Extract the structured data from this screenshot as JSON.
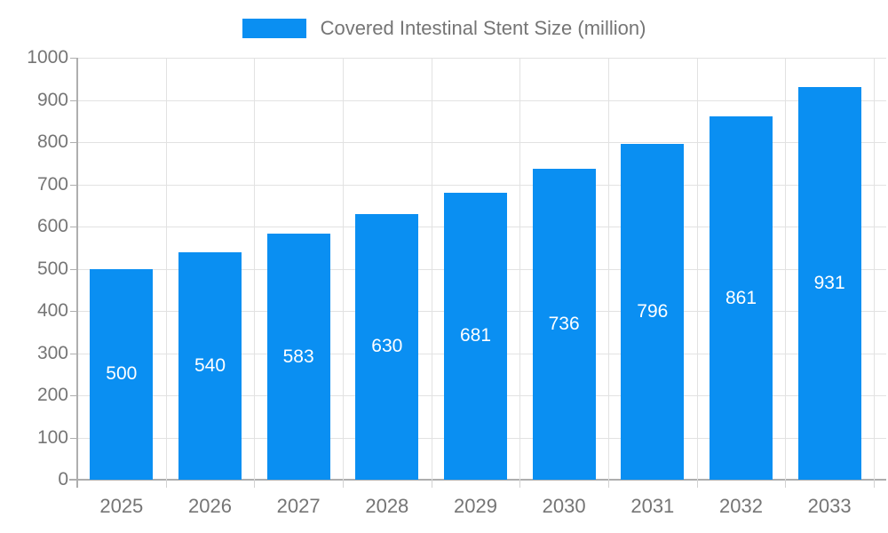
{
  "chart_data": {
    "type": "bar",
    "legend_label": "Covered Intestinal Stent Size (million)",
    "categories": [
      "2025",
      "2026",
      "2027",
      "2028",
      "2029",
      "2030",
      "2031",
      "2032",
      "2033"
    ],
    "values": [
      500,
      540,
      583,
      630,
      681,
      736,
      796,
      861,
      931
    ],
    "series_name": "Covered Intestinal Stent Size (million)",
    "xlabel": "",
    "ylabel": "",
    "ylim": [
      0,
      1000
    ],
    "y_tick_step": 100,
    "y_tick_labels": [
      "0",
      "100",
      "200",
      "300",
      "400",
      "500",
      "600",
      "700",
      "800",
      "900",
      "1000"
    ],
    "grid": "on",
    "legend_position": "top-center",
    "value_labels": "inside-center-white"
  },
  "colors": {
    "bar": "#0a8ff2",
    "grid": "#e2e2e2",
    "axis": "#aeaeae",
    "boundary_tick": "#d2d2d2",
    "muted_text": "#757575",
    "value_text": "#ffffff",
    "background": "#ffffff"
  }
}
